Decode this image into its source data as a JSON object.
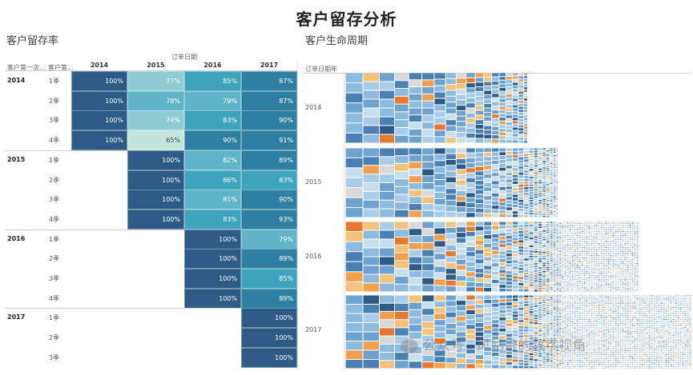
{
  "title": "客户留存分析",
  "left": {
    "subtitle": "客户留存率",
    "top_caption": "订单日期",
    "head_first": "客户第一次...",
    "head_quarter": "客户第...",
    "columns": [
      "2014",
      "2015",
      "2016",
      "2017"
    ],
    "groups": [
      {
        "year": "2014",
        "rows": [
          {
            "q": "1季",
            "cells": [
              "100%",
              "77%",
              "85%",
              "87%"
            ]
          },
          {
            "q": "2季",
            "cells": [
              "100%",
              "78%",
              "79%",
              "87%"
            ]
          },
          {
            "q": "3季",
            "cells": [
              "100%",
              "74%",
              "83%",
              "90%"
            ]
          },
          {
            "q": "4季",
            "cells": [
              "100%",
              "65%",
              "90%",
              "91%"
            ]
          }
        ]
      },
      {
        "year": "2015",
        "rows": [
          {
            "q": "1季",
            "cells": [
              null,
              "100%",
              "82%",
              "89%"
            ]
          },
          {
            "q": "2季",
            "cells": [
              null,
              "100%",
              "86%",
              "83%"
            ]
          },
          {
            "q": "3季",
            "cells": [
              null,
              "100%",
              "81%",
              "90%"
            ]
          },
          {
            "q": "4季",
            "cells": [
              null,
              "100%",
              "83%",
              "93%"
            ]
          }
        ]
      },
      {
        "year": "2016",
        "rows": [
          {
            "q": "1季",
            "cells": [
              null,
              null,
              "100%",
              "79%"
            ]
          },
          {
            "q": "2季",
            "cells": [
              null,
              null,
              "100%",
              "89%"
            ]
          },
          {
            "q": "3季",
            "cells": [
              null,
              null,
              "100%",
              "85%"
            ]
          },
          {
            "q": "4季",
            "cells": [
              null,
              null,
              "100%",
              "89%"
            ]
          }
        ]
      },
      {
        "year": "2017",
        "rows": [
          {
            "q": "1季",
            "cells": [
              null,
              null,
              null,
              "100%"
            ]
          },
          {
            "q": "2季",
            "cells": [
              null,
              null,
              null,
              "100%"
            ]
          },
          {
            "q": "3季",
            "cells": [
              null,
              null,
              null,
              "100%"
            ]
          }
        ]
      }
    ]
  },
  "right": {
    "subtitle": "客户生命周期",
    "caption": "订单日期年",
    "years": [
      "2014",
      "2015",
      "2016",
      "2017"
    ]
  },
  "watermark": "公众号 · 风姑娘的数字视角",
  "colors": {
    "c100": "#2d5a87",
    "c90": "#2f7fa3",
    "c85": "#3ea3bd",
    "c80": "#5fb5c7",
    "c75": "#8fcbd3",
    "c65": "#c3e6dc",
    "treemap_palette": [
      "#2d5a87",
      "#4a80b4",
      "#6fa3cf",
      "#8cbbdf",
      "#a9cde8",
      "#c6dfee",
      "#f6c27a",
      "#f2a04d",
      "#e6792f",
      "#d9d9d9"
    ]
  },
  "chart_data": {
    "type": "heatmap",
    "title": "客户留存率",
    "x_label": "订单日期",
    "x": [
      "2014",
      "2015",
      "2016",
      "2017"
    ],
    "y": [
      "2014 1季",
      "2014 2季",
      "2014 3季",
      "2014 4季",
      "2015 1季",
      "2015 2季",
      "2015 3季",
      "2015 4季",
      "2016 1季",
      "2016 2季",
      "2016 3季",
      "2016 4季",
      "2017 1季",
      "2017 2季",
      "2017 3季"
    ],
    "values": [
      [
        100,
        77,
        85,
        87
      ],
      [
        100,
        78,
        79,
        87
      ],
      [
        100,
        74,
        83,
        90
      ],
      [
        100,
        65,
        90,
        91
      ],
      [
        null,
        100,
        82,
        89
      ],
      [
        null,
        100,
        86,
        83
      ],
      [
        null,
        100,
        81,
        90
      ],
      [
        null,
        100,
        83,
        93
      ],
      [
        null,
        null,
        100,
        79
      ],
      [
        null,
        null,
        100,
        89
      ],
      [
        null,
        null,
        100,
        85
      ],
      [
        null,
        null,
        100,
        89
      ],
      [
        null,
        null,
        null,
        100
      ],
      [
        null,
        null,
        null,
        100
      ],
      [
        null,
        null,
        null,
        100
      ]
    ]
  }
}
